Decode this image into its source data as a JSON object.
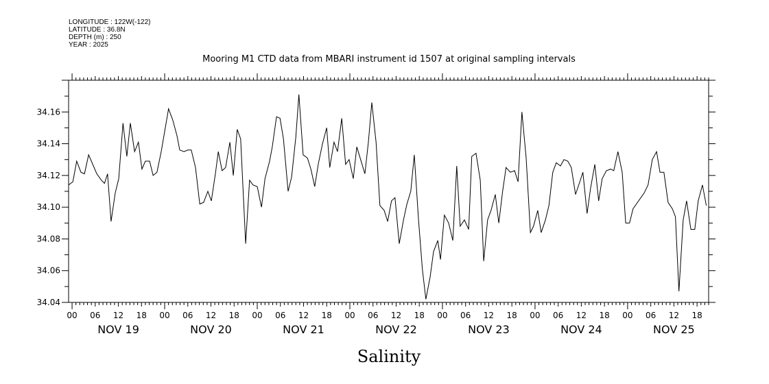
{
  "header": {
    "lines": [
      "LONGITUDE : 122W(-122)",
      "LATITUDE : 36.8N",
      "DEPTH (m) : 250",
      "YEAR : 2025"
    ]
  },
  "chart_data": {
    "type": "line",
    "title": "Mooring M1 CTD data from MBARI instrument id 1507 at original sampling intervals",
    "xlabel": "",
    "ylabel": "Salinity",
    "x_units": "hours since NOV 19 00:00 2025",
    "xlim": [
      -0.9,
      165
    ],
    "ylim": [
      34.04,
      34.18
    ],
    "y_ticks": [
      "34.04",
      "34.06",
      "34.08",
      "34.10",
      "34.12",
      "34.14",
      "34.16"
    ],
    "hour_tick_labels": [
      "00",
      "06",
      "12",
      "18"
    ],
    "day_labels": [
      "NOV 19",
      "NOV 20",
      "NOV 21",
      "NOV 22",
      "NOV 23",
      "NOV 24",
      "NOV 25"
    ],
    "grid": false,
    "series": [
      {
        "name": "Salinity",
        "x": [
          -0.9,
          0.2,
          1.2,
          2.3,
          3.2,
          4.3,
          6.4,
          7.6,
          8.4,
          9.2,
          10.1,
          11.2,
          12.1,
          13.2,
          14.2,
          15.1,
          16.2,
          17.2,
          18.1,
          19.0,
          20.1,
          21.0,
          22.0,
          23.1,
          25.0,
          26.1,
          27.2,
          27.9,
          29.0,
          30.0,
          30.9,
          32.0,
          33.1,
          34.1,
          35.2,
          36.1,
          37.2,
          37.9,
          38.9,
          39.8,
          40.9,
          41.8,
          42.8,
          43.7,
          45.0,
          46.0,
          46.9,
          48.0,
          49.1,
          50.0,
          51.2,
          51.9,
          53.0,
          53.9,
          54.8,
          56.0,
          56.9,
          58.0,
          58.8,
          59.9,
          61.0,
          61.9,
          62.9,
          63.8,
          64.9,
          66.0,
          66.8,
          67.9,
          68.8,
          69.9,
          70.9,
          71.8,
          72.9,
          73.8,
          74.8,
          75.9,
          76.8,
          77.7,
          78.8,
          79.8,
          80.9,
          81.8,
          82.8,
          83.7,
          84.8,
          85.9,
          86.8,
          87.8,
          88.7,
          89.8,
          90.8,
          91.7,
          92.8,
          93.7,
          94.8,
          95.5,
          96.5,
          97.6,
          98.7,
          99.7,
          100.6,
          101.7,
          102.8,
          103.6,
          104.7,
          105.8,
          106.7,
          107.7,
          108.6,
          109.7,
          110.6,
          111.6,
          112.5,
          113.6,
          114.7,
          115.6,
          116.6,
          117.7,
          118.8,
          119.6,
          120.7,
          121.6,
          122.7,
          123.6,
          124.6,
          125.5,
          126.6,
          127.5,
          128.5,
          129.4,
          130.5,
          131.6,
          132.4,
          133.5,
          134.4,
          135.5,
          136.5,
          137.4,
          138.5,
          139.6,
          140.4,
          141.5,
          142.6,
          143.5,
          144.5,
          145.4,
          148.3,
          149.3,
          150.4,
          151.5,
          152.4,
          153.4,
          154.5,
          155.6,
          156.4,
          157.3,
          158.4,
          159.3,
          160.4,
          161.4,
          162.3,
          163.4,
          164.4
        ],
        "y": [
          34.114,
          34.116,
          34.129,
          34.122,
          34.121,
          34.133,
          34.121,
          34.117,
          34.115,
          34.121,
          34.091,
          34.109,
          34.118,
          34.153,
          34.132,
          34.153,
          34.135,
          34.141,
          34.124,
          34.129,
          34.129,
          34.12,
          34.122,
          34.135,
          34.162,
          34.155,
          34.145,
          34.136,
          34.135,
          34.136,
          34.136,
          34.125,
          34.102,
          34.103,
          34.11,
          34.104,
          34.122,
          34.135,
          34.123,
          34.125,
          34.141,
          34.12,
          34.149,
          34.143,
          34.077,
          34.117,
          34.114,
          34.113,
          34.1,
          34.118,
          34.129,
          34.138,
          34.157,
          34.156,
          34.143,
          34.11,
          34.119,
          34.144,
          34.171,
          34.133,
          34.131,
          34.124,
          34.113,
          34.127,
          34.14,
          34.15,
          34.125,
          34.141,
          34.135,
          34.156,
          34.127,
          34.13,
          34.118,
          34.138,
          34.13,
          34.121,
          34.141,
          34.166,
          34.141,
          34.101,
          34.098,
          34.091,
          34.104,
          34.106,
          34.077,
          34.092,
          34.102,
          34.11,
          34.133,
          34.092,
          34.061,
          34.042,
          34.056,
          34.072,
          34.079,
          34.067,
          34.095,
          34.09,
          34.079,
          34.126,
          34.088,
          34.092,
          34.086,
          34.132,
          34.134,
          34.117,
          34.066,
          34.092,
          34.098,
          34.108,
          34.09,
          34.11,
          34.125,
          34.122,
          34.123,
          34.116,
          34.16,
          34.131,
          34.084,
          34.088,
          34.098,
          34.084,
          34.092,
          34.101,
          34.122,
          34.128,
          34.126,
          34.13,
          34.129,
          34.125,
          34.108,
          34.116,
          34.122,
          34.096,
          34.112,
          34.127,
          34.104,
          34.118,
          34.123,
          34.124,
          34.123,
          34.135,
          34.122,
          34.09,
          34.09,
          34.099,
          34.109,
          34.114,
          34.13,
          34.135,
          34.122,
          34.122,
          34.103,
          34.099,
          34.094,
          34.047,
          34.092,
          34.104,
          34.086,
          34.086,
          34.104,
          34.114,
          34.101
        ]
      }
    ]
  }
}
